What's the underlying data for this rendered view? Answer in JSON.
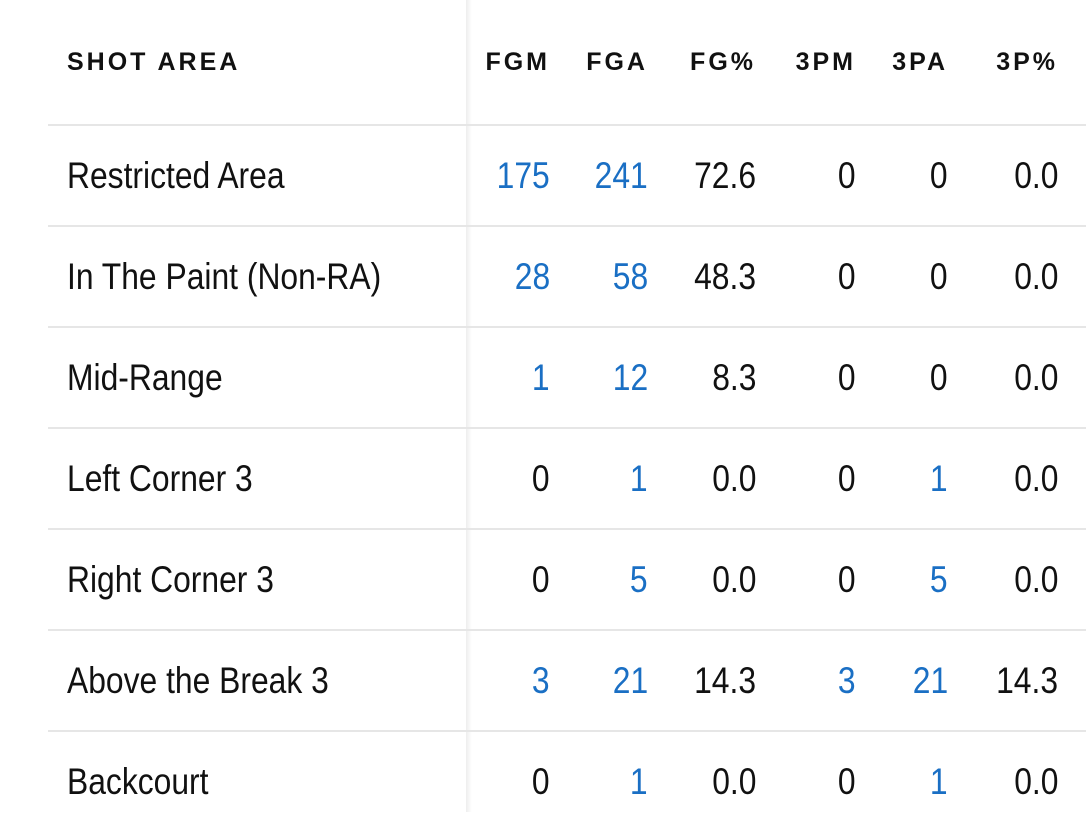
{
  "table": {
    "columns": [
      "SHOT AREA",
      "FGM",
      "FGA",
      "FG%",
      "3PM",
      "3PA",
      "3P%"
    ],
    "rows": [
      {
        "area": "Restricted Area",
        "fgm": "175",
        "fga": "241",
        "fg_pct": "72.6",
        "tpm": "0",
        "tpa": "0",
        "tp_pct": "0.0"
      },
      {
        "area": "In The Paint (Non-RA)",
        "fgm": "28",
        "fga": "58",
        "fg_pct": "48.3",
        "tpm": "0",
        "tpa": "0",
        "tp_pct": "0.0"
      },
      {
        "area": "Mid-Range",
        "fgm": "1",
        "fga": "12",
        "fg_pct": "8.3",
        "tpm": "0",
        "tpa": "0",
        "tp_pct": "0.0"
      },
      {
        "area": "Left Corner 3",
        "fgm": "0",
        "fga": "1",
        "fg_pct": "0.0",
        "tpm": "0",
        "tpa": "1",
        "tp_pct": "0.0"
      },
      {
        "area": "Right Corner 3",
        "fgm": "0",
        "fga": "5",
        "fg_pct": "0.0",
        "tpm": "0",
        "tpa": "5",
        "tp_pct": "0.0"
      },
      {
        "area": "Above the Break 3",
        "fgm": "3",
        "fga": "21",
        "fg_pct": "14.3",
        "tpm": "3",
        "tpa": "21",
        "tp_pct": "14.3"
      },
      {
        "area": "Backcourt",
        "fgm": "0",
        "fga": "1",
        "fg_pct": "0.0",
        "tpm": "0",
        "tpa": "1",
        "tp_pct": "0.0"
      }
    ]
  },
  "colors": {
    "link": "#1a6fc4",
    "text": "#111111",
    "divider": "#e6e6e6"
  }
}
